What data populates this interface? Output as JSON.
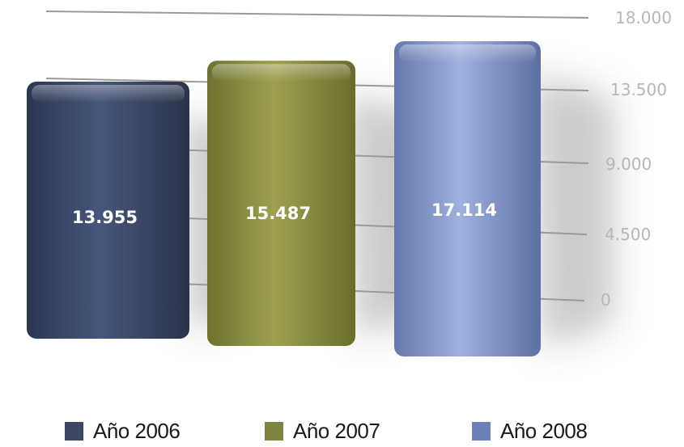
{
  "chart_data": {
    "type": "bar",
    "categories": [
      "Año 2006",
      "Año 2007",
      "Año 2008"
    ],
    "values": [
      13955,
      15487,
      17114
    ],
    "value_labels": [
      "13.955",
      "15.487",
      "17.114"
    ],
    "ylim": [
      0,
      18000
    ],
    "yticks": [
      0,
      4500,
      9000,
      13500,
      18000
    ],
    "ytick_labels": [
      "0",
      "4.500",
      "9.000",
      "13.500",
      "18.000"
    ],
    "grid": true,
    "legend_position": "bottom",
    "colors": [
      "#3a4766",
      "#8a8c3d",
      "#7f94c4"
    ],
    "style": "3d-beveled"
  },
  "legend": {
    "items": [
      {
        "label": "Año 2006",
        "color": "#3a4766"
      },
      {
        "label": "Año 2007",
        "color": "#7e8340"
      },
      {
        "label": "Año 2008",
        "color": "#6b80b8"
      }
    ]
  }
}
